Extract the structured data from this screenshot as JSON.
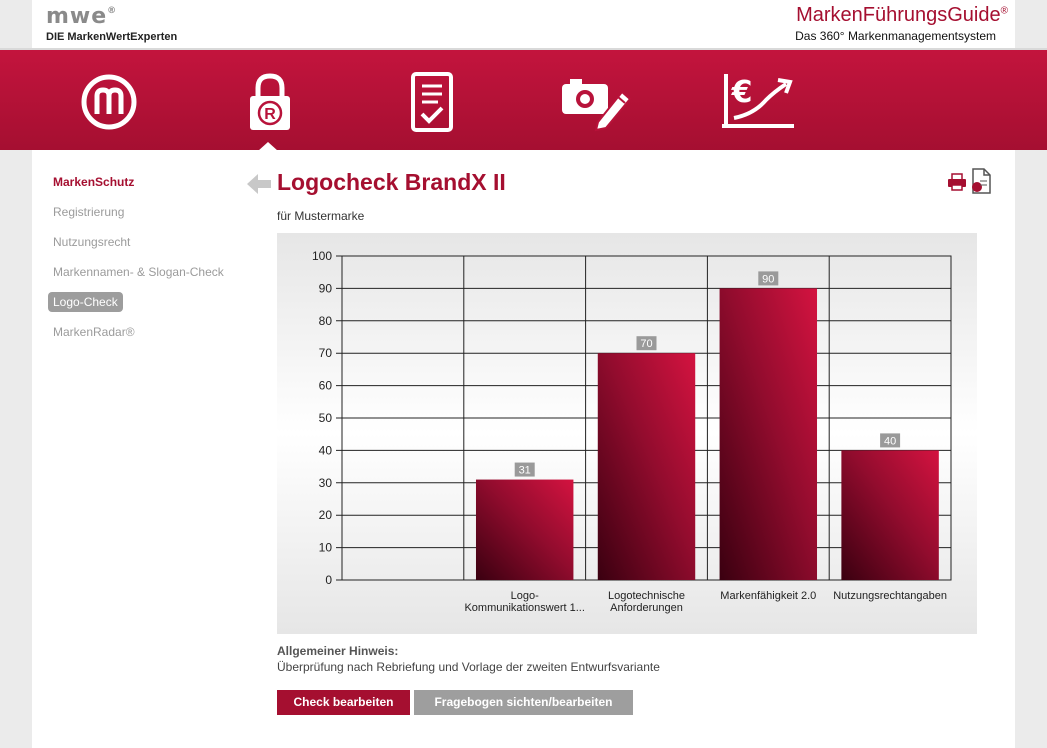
{
  "header": {
    "logo": "mwe",
    "logo_mark": "®",
    "logo_subtitle": "DIE MarkenWertExperten",
    "brand_title": "MarkenFührungsGuide",
    "brand_mark": "®",
    "brand_subtitle": "Das 360° Markenmanagementsystem"
  },
  "nav": {
    "icons": [
      "brand-m-icon",
      "registered-lock-icon",
      "checklist-tablet-icon",
      "camera-pencil-icon",
      "euro-growth-icon"
    ],
    "active_index": 1
  },
  "sidebar": {
    "heading": "MarkenSchutz",
    "items": [
      {
        "label": "Registrierung",
        "active": false
      },
      {
        "label": "Nutzungsrecht",
        "active": false
      },
      {
        "label": "Markennamen- & Slogan-Check",
        "active": false
      },
      {
        "label": "Logo-Check",
        "active": true
      },
      {
        "label": "MarkenRadar®",
        "active": false
      }
    ]
  },
  "main": {
    "title": "Logocheck BrandX II",
    "subtitle": "für Mustermarke",
    "hint_title": "Allgemeiner Hinweis:",
    "hint_text": "Überprüfung nach Rebriefung und Vorlage der zweiten Entwurfsvariante",
    "button_edit": "Check bearbeiten",
    "button_questionnaire": "Fragebogen sichten/bearbeiten"
  },
  "colors": {
    "accent": "#a50f30",
    "nav_red": "#b8123a",
    "gray_button": "#9e9e9e"
  },
  "chart_data": {
    "type": "bar",
    "categories": [
      [
        "Logo-",
        "Kommunikationswert 1..."
      ],
      [
        "Logotechnische",
        "Anforderungen"
      ],
      [
        "Markenfähigkeit 2.0"
      ],
      [
        "Nutzungsrechtangaben"
      ]
    ],
    "values": [
      31,
      70,
      90,
      40
    ],
    "data_labels": [
      "31",
      "70",
      "90",
      "40"
    ],
    "ylim": [
      0,
      100
    ],
    "yticks": [
      0,
      10,
      20,
      30,
      40,
      50,
      60,
      70,
      80,
      90,
      100
    ],
    "grid": true,
    "legend": "none"
  }
}
